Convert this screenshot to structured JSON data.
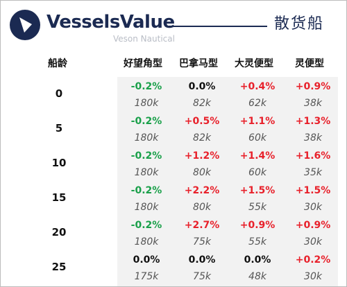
{
  "brand": {
    "name": "VesselsValue",
    "subtitle": "Veson Nautical",
    "logo_icon": "vesselsvalue-logo-icon",
    "brand_color": "#1b2a52"
  },
  "vessel_type": "散货船",
  "table": {
    "age_header": "船龄",
    "columns": [
      "好望角型",
      "巴拿马型",
      "大灵便型",
      "灵便型"
    ],
    "colors": {
      "negative": "#1aa04a",
      "positive": "#e8212b",
      "zero": "#111111"
    },
    "rows": [
      {
        "age": "0",
        "cells": [
          {
            "change": "-0.2%",
            "value": "180k"
          },
          {
            "change": "0.0%",
            "value": "82k"
          },
          {
            "change": "+0.4%",
            "value": "62k"
          },
          {
            "change": "+0.9%",
            "value": "38k"
          }
        ]
      },
      {
        "age": "5",
        "cells": [
          {
            "change": "-0.2%",
            "value": "180k"
          },
          {
            "change": "+0.5%",
            "value": "82k"
          },
          {
            "change": "+1.1%",
            "value": "60k"
          },
          {
            "change": "+1.3%",
            "value": "38k"
          }
        ]
      },
      {
        "age": "10",
        "cells": [
          {
            "change": "-0.2%",
            "value": "180k"
          },
          {
            "change": "+1.2%",
            "value": "80k"
          },
          {
            "change": "+1.4%",
            "value": "60k"
          },
          {
            "change": "+1.6%",
            "value": "35k"
          }
        ]
      },
      {
        "age": "15",
        "cells": [
          {
            "change": "-0.2%",
            "value": "180k"
          },
          {
            "change": "+2.2%",
            "value": "80k"
          },
          {
            "change": "+1.5%",
            "value": "55k"
          },
          {
            "change": "+1.5%",
            "value": "30k"
          }
        ]
      },
      {
        "age": "20",
        "cells": [
          {
            "change": "-0.2%",
            "value": "180k"
          },
          {
            "change": "+2.7%",
            "value": "75k"
          },
          {
            "change": "+0.9%",
            "value": "55k"
          },
          {
            "change": "+0.9%",
            "value": "30k"
          }
        ]
      },
      {
        "age": "25",
        "cells": [
          {
            "change": "0.0%",
            "value": "175k"
          },
          {
            "change": "0.0%",
            "value": "75k"
          },
          {
            "change": "0.0%",
            "value": "48k"
          },
          {
            "change": "+0.2%",
            "value": "30k"
          }
        ]
      }
    ]
  }
}
